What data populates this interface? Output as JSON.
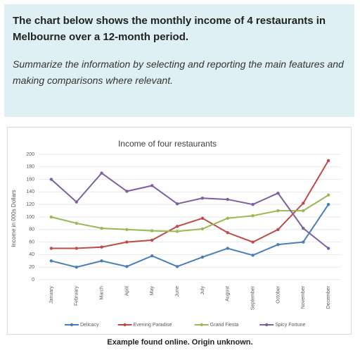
{
  "heading": "The chart below shows the monthly income of 4 restaurants in Melbourne over a 12-month period.",
  "instruction": "Summarize the information by selecting and reporting the main features and making comparisons where relevant.",
  "caption": "Example found online. Origin unknown.",
  "chart_data": {
    "type": "line",
    "title": "Income of four restaurants",
    "y_label": "Income in 000s Dollars",
    "categories": [
      "January",
      "February",
      "March",
      "April",
      "May",
      "June",
      "July",
      "August",
      "September",
      "October",
      "November",
      "December"
    ],
    "series": [
      {
        "name": "Delicacy",
        "color": "#4a7ebb",
        "values": [
          30,
          20,
          30,
          21,
          38,
          21,
          36,
          50,
          39,
          56,
          60,
          120
        ]
      },
      {
        "name": "Evening Paradise",
        "color": "#be4b48",
        "values": [
          50,
          50,
          52,
          60,
          63,
          85,
          98,
          75,
          60,
          80,
          122,
          190
        ]
      },
      {
        "name": "Grand Fiesta",
        "color": "#98b954",
        "values": [
          100,
          90,
          82,
          80,
          78,
          77,
          81,
          98,
          102,
          110,
          110,
          135
        ]
      },
      {
        "name": "Spicy Fortune",
        "color": "#7d60a0",
        "values": [
          160,
          124,
          170,
          141,
          150,
          121,
          130,
          128,
          120,
          138,
          82,
          50
        ]
      }
    ],
    "ylim": [
      0,
      200
    ],
    "yticks": [
      0,
      20,
      40,
      60,
      80,
      100,
      120,
      140,
      160,
      180,
      200
    ],
    "grid": true,
    "legend": "bottom"
  }
}
